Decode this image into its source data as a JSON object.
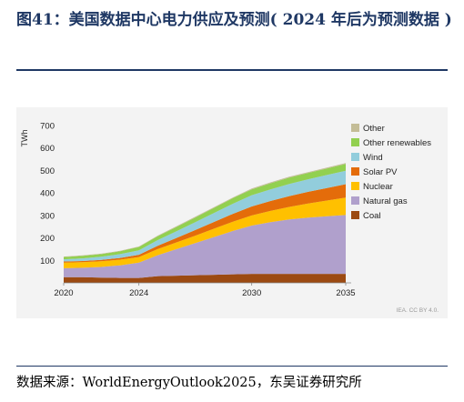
{
  "figure": {
    "title": "图41：美国数据中心电力供应及预测( 2024 年后为预测数据 )",
    "source": "数据来源：WorldEnergyOutlook2025，东吴证券研究所",
    "credit": "IEA. CC BY 4.0."
  },
  "chart_data": {
    "type": "area",
    "stacked": true,
    "ylabel": "TWh",
    "xlabel": "",
    "xlim": [
      2020,
      2035
    ],
    "ylim": [
      0,
      700
    ],
    "yticks": [
      100,
      200,
      300,
      400,
      500,
      600,
      700
    ],
    "xticks": [
      2020,
      2024,
      2030,
      2035
    ],
    "grid": false,
    "legend_position": "right",
    "x": [
      2020,
      2021,
      2022,
      2023,
      2024,
      2025,
      2026,
      2027,
      2028,
      2029,
      2030,
      2031,
      2032,
      2033,
      2034,
      2035
    ],
    "series": [
      {
        "name": "Coal",
        "color": "#9c4a12",
        "values": [
          25,
          25,
          23,
          22,
          22,
          30,
          32,
          34,
          36,
          38,
          40,
          40,
          40,
          40,
          40,
          40
        ]
      },
      {
        "name": "Natural gas",
        "color": "#b0a0cc",
        "values": [
          40,
          42,
          48,
          56,
          68,
          93,
          118,
          143,
          168,
          193,
          215,
          230,
          242,
          250,
          256,
          262
        ]
      },
      {
        "name": "Nuclear",
        "color": "#ffc000",
        "values": [
          25,
          25,
          25,
          25,
          25,
          27,
          30,
          33,
          37,
          41,
          45,
          50,
          56,
          63,
          70,
          77
        ]
      },
      {
        "name": "Solar PV",
        "color": "#e46c0a",
        "values": [
          5,
          5,
          6,
          8,
          10,
          15,
          20,
          25,
          30,
          35,
          40,
          44,
          48,
          52,
          56,
          60
        ]
      },
      {
        "name": "Wind",
        "color": "#92cddc",
        "values": [
          10,
          12,
          14,
          17,
          20,
          25,
          30,
          35,
          40,
          45,
          50,
          52,
          54,
          56,
          58,
          60
        ]
      },
      {
        "name": "Other renewables",
        "color": "#92d050",
        "values": [
          10,
          11,
          12,
          13,
          15,
          17,
          19,
          21,
          23,
          25,
          26,
          27,
          28,
          28,
          29,
          30
        ]
      },
      {
        "name": "Other",
        "color": "#c4bd97",
        "values": [
          2,
          2,
          2,
          2,
          2,
          3,
          3,
          3,
          3,
          3,
          4,
          4,
          4,
          4,
          4,
          4
        ]
      }
    ]
  }
}
